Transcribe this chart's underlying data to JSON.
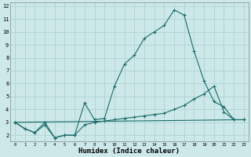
{
  "xlabel": "Humidex (Indice chaleur)",
  "background_color": "#cce8e8",
  "grid_color": "#aacfcf",
  "line_color": "#1a6b6b",
  "xlim": [
    -0.5,
    23.5
  ],
  "ylim": [
    1.5,
    12.3
  ],
  "yticks": [
    2,
    3,
    4,
    5,
    6,
    7,
    8,
    9,
    10,
    11,
    12
  ],
  "xticks": [
    0,
    1,
    2,
    3,
    4,
    5,
    6,
    7,
    8,
    9,
    10,
    11,
    12,
    13,
    14,
    15,
    16,
    17,
    18,
    19,
    20,
    21,
    22,
    23
  ],
  "line1_x": [
    0,
    1,
    2,
    3,
    4,
    5,
    6,
    7,
    8,
    9,
    10,
    11,
    12,
    13,
    14,
    15,
    16,
    17,
    18,
    19,
    20,
    21,
    22,
    23
  ],
  "line1_y": [
    3.0,
    2.5,
    2.2,
    3.0,
    1.8,
    2.0,
    2.0,
    4.5,
    3.2,
    3.3,
    5.8,
    7.5,
    8.2,
    9.5,
    10.0,
    10.5,
    11.7,
    11.3,
    8.5,
    6.2,
    4.6,
    4.2,
    3.2,
    3.2
  ],
  "line2_x": [
    0,
    1,
    2,
    3,
    4,
    5,
    6,
    7,
    8,
    9,
    10,
    11,
    12,
    13,
    14,
    15,
    16,
    17,
    18,
    19,
    20,
    21,
    22,
    23
  ],
  "line2_y": [
    3.0,
    2.5,
    2.2,
    2.8,
    1.8,
    2.0,
    2.0,
    2.8,
    3.0,
    3.1,
    3.2,
    3.3,
    3.4,
    3.5,
    3.6,
    3.7,
    4.0,
    4.3,
    4.8,
    5.2,
    5.8,
    3.8,
    3.2,
    3.2
  ],
  "line3_x": [
    0,
    23
  ],
  "line3_y": [
    3.0,
    3.2
  ]
}
